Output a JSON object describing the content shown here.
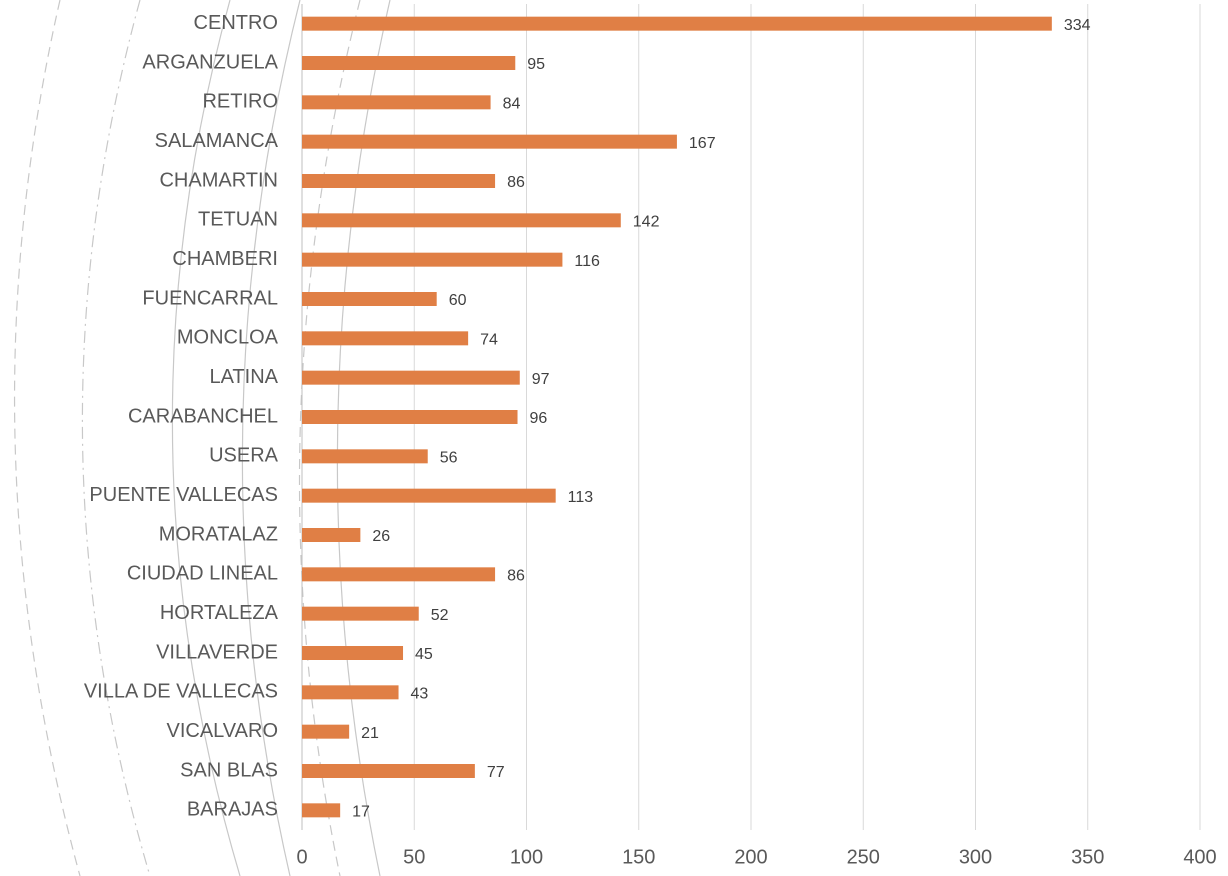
{
  "chart_data": {
    "type": "bar",
    "orientation": "horizontal",
    "categories": [
      "CENTRO",
      "ARGANZUELA",
      "RETIRO",
      "SALAMANCA",
      "CHAMARTIN",
      "TETUAN",
      "CHAMBERI",
      "FUENCARRAL",
      "MONCLOA",
      "LATINA",
      "CARABANCHEL",
      "USERA",
      "PUENTE VALLECAS",
      "MORATALAZ",
      "CIUDAD LINEAL",
      "HORTALEZA",
      "VILLAVERDE",
      "VILLA DE VALLECAS",
      "VICALVARO",
      "SAN BLAS",
      "BARAJAS"
    ],
    "values": [
      334,
      95,
      84,
      167,
      86,
      142,
      116,
      60,
      74,
      97,
      96,
      56,
      113,
      26,
      86,
      52,
      45,
      43,
      21,
      77,
      17
    ],
    "color": "#e07f45",
    "xlim": [
      0,
      400
    ],
    "xticks": [
      0,
      50,
      100,
      150,
      200,
      250,
      300,
      350,
      400
    ],
    "grid": true
  }
}
